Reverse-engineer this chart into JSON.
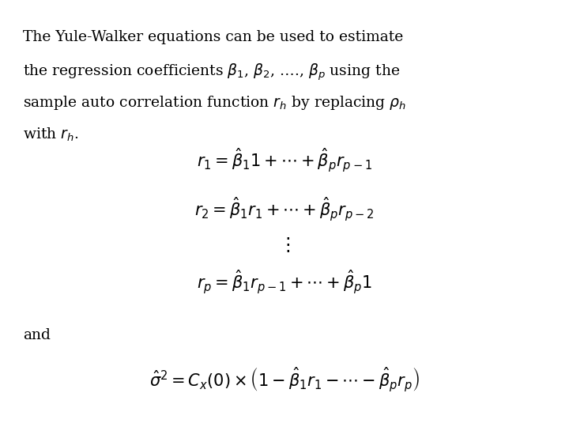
{
  "background_color": "#ffffff",
  "text_color": "#000000",
  "figsize": [
    7.2,
    5.4
  ],
  "dpi": 100,
  "paragraph_text": "The Yule-Walker equations can be used to estimate\nthe regression coefficients $\\beta_1$, $\\beta_2$, ..., $\\beta_p$ using the\nsample auto correlation function $r_h$ by replacing $\\rho_h$\nwith $r_h$.",
  "eq1": "$r_1 = \\hat{\\beta}_1 1 + \\cdots + \\hat{\\beta}_p r_{p-1}$",
  "eq2": "$r_2 = \\hat{\\beta}_1 r_1 + \\cdots + \\hat{\\beta}_p r_{p-2}$",
  "eq_vdots": "$\\vdots$",
  "eq3": "$r_p = \\hat{\\beta}_1 r_{p-1} + \\cdots + \\hat{\\beta}_p 1$",
  "eq_and": "and",
  "eq4": "$\\hat{\\sigma}^2 = C_x(0) \\times \\left(1 - \\hat{\\beta}_1 r_1 - \\cdots - \\hat{\\beta}_p r_p\\right)$",
  "para_fontsize": 13.5,
  "eq_fontsize": 15,
  "and_fontsize": 13.5
}
